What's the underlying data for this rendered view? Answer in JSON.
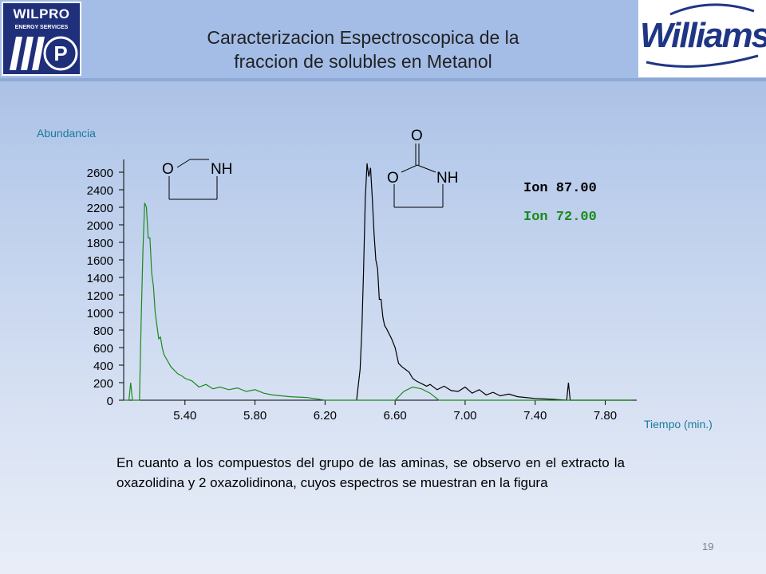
{
  "title_line1": "Caracterizacion Espectroscopica de la",
  "title_line2": "fraccion de solubles en Metanol",
  "logo_left_text": "WILPRO",
  "logo_left_sub": "ENERGY SERVICES",
  "logo_right_text": "Williams.",
  "caption": "En cuanto a los compuestos del grupo de las aminas, se observo en el extracto la oxazolidina y 2 oxazolidinona, cuyos espectros se muestran en la figura",
  "slide_number": "19",
  "colors": {
    "ion87": "#000000",
    "ion72": "#1a8a1a",
    "axis_label": "#1a7a9a"
  },
  "chart_data": {
    "type": "line",
    "title": "",
    "ylabel": "Abundancia",
    "xlabel": "Tiempo (min.)",
    "xlim": [
      5.05,
      7.98
    ],
    "ylim": [
      0,
      2800
    ],
    "x_ticks": [
      "5.40",
      "5.80",
      "6.20",
      "6.60",
      "7.00",
      "7.40",
      "7.80"
    ],
    "y_ticks": [
      "0",
      "200",
      "400",
      "600",
      "800",
      "1000",
      "1200",
      "1400",
      "1600",
      "1800",
      "2000",
      "2200",
      "2400",
      "2600"
    ],
    "grid": false,
    "legend_position": "top-right",
    "series": [
      {
        "name": "Ion 87.00",
        "x": [
          6.38,
          6.4,
          6.41,
          6.42,
          6.43,
          6.44,
          6.45,
          6.46,
          6.47,
          6.48,
          6.49,
          6.5,
          6.51,
          6.52,
          6.53,
          6.54,
          6.55,
          6.56,
          6.58,
          6.6,
          6.62,
          6.64,
          6.66,
          6.68,
          6.7,
          6.72,
          6.74,
          6.76,
          6.78,
          6.8,
          6.84,
          6.88,
          6.92,
          6.96,
          7.0,
          7.04,
          7.08,
          7.12,
          7.16,
          7.2,
          7.25,
          7.3,
          7.4,
          7.5,
          7.58,
          7.59,
          7.6,
          7.7,
          7.95
        ],
        "y": [
          0,
          350,
          800,
          1500,
          2300,
          2700,
          2550,
          2650,
          2300,
          1900,
          1600,
          1500,
          1150,
          1150,
          950,
          850,
          820,
          780,
          700,
          600,
          420,
          380,
          350,
          320,
          250,
          220,
          200,
          180,
          160,
          180,
          120,
          160,
          110,
          100,
          150,
          80,
          120,
          60,
          90,
          50,
          70,
          40,
          20,
          10,
          0,
          200,
          0,
          0,
          0
        ]
      },
      {
        "name": "Ion 72.00",
        "x": [
          5.05,
          5.08,
          5.09,
          5.1,
          5.14,
          5.15,
          5.16,
          5.17,
          5.18,
          5.19,
          5.2,
          5.21,
          5.22,
          5.23,
          5.24,
          5.25,
          5.26,
          5.27,
          5.28,
          5.3,
          5.32,
          5.34,
          5.36,
          5.38,
          5.4,
          5.44,
          5.48,
          5.52,
          5.56,
          5.6,
          5.65,
          5.7,
          5.75,
          5.8,
          5.85,
          5.9,
          6.0,
          6.1,
          6.2,
          6.4,
          6.6,
          6.65,
          6.7,
          6.75,
          6.8,
          6.85,
          7.0,
          7.95
        ],
        "y": [
          0,
          0,
          200,
          0,
          0,
          900,
          1700,
          2250,
          2200,
          1850,
          1850,
          1450,
          1300,
          1000,
          850,
          700,
          720,
          600,
          520,
          450,
          380,
          340,
          300,
          280,
          250,
          220,
          150,
          180,
          130,
          150,
          120,
          140,
          100,
          120,
          80,
          60,
          40,
          30,
          0,
          0,
          0,
          100,
          150,
          130,
          80,
          0,
          0,
          0
        ]
      }
    ]
  }
}
